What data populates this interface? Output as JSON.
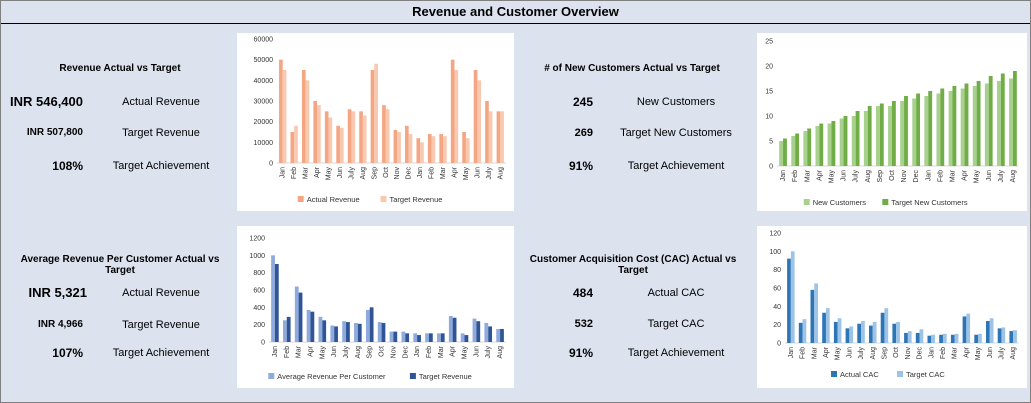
{
  "title": "Revenue and Customer Overview",
  "colors": {
    "actual_revenue": "#f4a582",
    "target_revenue": "#f8c8b0",
    "new_customers": "#a9d18e",
    "target_new_customers": "#70ad47",
    "arpc_actual": "#8faadc",
    "arpc_target": "#2f5597",
    "cac_actual": "#2e75b6",
    "cac_target": "#9dc3e6"
  },
  "revenue": {
    "heading": "Revenue Actual vs Target",
    "rows": [
      {
        "value": "INR 546,400",
        "label": "Actual Revenue"
      },
      {
        "value": "INR 507,800",
        "label": "Target Revenue"
      },
      {
        "value": "108%",
        "label": "Target Achievement"
      }
    ]
  },
  "customers": {
    "heading": "# of New Customers Actual vs Target",
    "rows": [
      {
        "value": "245",
        "label": "New Customers"
      },
      {
        "value": "269",
        "label": "Target New Customers"
      },
      {
        "value": "91%",
        "label": "Target Achievement"
      }
    ]
  },
  "arpc": {
    "heading": "Average Revenue Per Customer Actual vs Target",
    "rows": [
      {
        "value": "INR 5,321",
        "label": "Actual Revenue"
      },
      {
        "value": "INR 4,966",
        "label": "Target Revenue"
      },
      {
        "value": "107%",
        "label": "Target Achievement"
      }
    ]
  },
  "cac": {
    "heading": "Customer Acquisition Cost (CAC) Actual vs Target",
    "rows": [
      {
        "value": "484",
        "label": "Actual CAC"
      },
      {
        "value": "532",
        "label": "Target CAC"
      },
      {
        "value": "91%",
        "label": "Target Achievement"
      }
    ]
  },
  "chart_data": [
    {
      "type": "bar",
      "categories": [
        "Jan",
        "Feb",
        "Mar",
        "Apr",
        "May",
        "Jun",
        "July",
        "Aug",
        "Sep",
        "Oct",
        "Nov",
        "Dec",
        "Jan",
        "Feb",
        "Mar",
        "Apr",
        "May",
        "Jun",
        "July",
        "Aug"
      ],
      "series": [
        {
          "name": "Actual Revenue",
          "values": [
            50000,
            15000,
            45000,
            30000,
            25000,
            18000,
            26000,
            25000,
            45000,
            28000,
            16000,
            18000,
            12000,
            14000,
            14000,
            50000,
            15000,
            45000,
            30000,
            25000
          ]
        },
        {
          "name": "Target Revenue",
          "values": [
            45000,
            18000,
            40000,
            28000,
            22000,
            17000,
            25000,
            23000,
            48000,
            26000,
            15000,
            14000,
            10000,
            13000,
            13000,
            45000,
            12000,
            40000,
            25000,
            25000
          ]
        }
      ],
      "ylim": [
        0,
        60000
      ],
      "yticks": [
        "0",
        "10000",
        "20000",
        "30000",
        "40000",
        "50000",
        "60000"
      ],
      "legend": "bottom"
    },
    {
      "type": "bar",
      "categories": [
        "Jan",
        "Feb",
        "Mar",
        "Apr",
        "May",
        "Jun",
        "July",
        "Aug",
        "Sep",
        "Oct",
        "Nov",
        "Dec",
        "Jan",
        "Feb",
        "Mar",
        "Apr",
        "May",
        "Jun",
        "July",
        "Aug"
      ],
      "series": [
        {
          "name": "New Customers",
          "values": [
            5,
            6,
            7,
            8,
            8.5,
            9.5,
            10,
            11,
            12,
            12,
            13,
            13.5,
            14,
            14.5,
            15,
            15.5,
            16,
            16.5,
            17,
            17.5
          ]
        },
        {
          "name": "Target New Customers",
          "values": [
            5.5,
            6.5,
            7.5,
            8.5,
            9,
            10,
            11,
            12,
            12.5,
            13,
            14,
            14.5,
            15,
            15.5,
            16,
            16.5,
            17,
            18,
            18.5,
            19
          ]
        }
      ],
      "ylim": [
        0,
        25
      ],
      "yticks": [
        "0",
        "5",
        "10",
        "15",
        "20",
        "25"
      ],
      "legend": "bottom"
    },
    {
      "type": "bar",
      "categories": [
        "Jan",
        "Feb",
        "Mar",
        "Apr",
        "May",
        "Jun",
        "July",
        "Aug",
        "Sep",
        "Oct",
        "Nov",
        "Dec",
        "Jan",
        "Feb",
        "Mar",
        "Apr",
        "May",
        "Jun",
        "July",
        "Aug"
      ],
      "series": [
        {
          "name": "Average Revenue Per Customer",
          "values": [
            1000,
            250,
            640,
            370,
            290,
            190,
            240,
            220,
            370,
            230,
            120,
            120,
            100,
            100,
            100,
            300,
            100,
            270,
            220,
            150
          ]
        },
        {
          "name": "Target Revenue",
          "values": [
            900,
            290,
            570,
            350,
            250,
            180,
            230,
            210,
            400,
            220,
            120,
            100,
            80,
            100,
            100,
            280,
            80,
            240,
            180,
            150
          ]
        }
      ],
      "ylim": [
        0,
        1200
      ],
      "yticks": [
        "0",
        "200",
        "400",
        "600",
        "800",
        "1000",
        "1200"
      ],
      "legend": "bottom"
    },
    {
      "type": "bar",
      "categories": [
        "Jan",
        "Feb",
        "Mar",
        "Apr",
        "May",
        "Jun",
        "July",
        "Aug",
        "Sep",
        "Oct",
        "Nov",
        "Dec",
        "Jan",
        "Feb",
        "Mar",
        "Apr",
        "May",
        "Jun",
        "July",
        "Aug"
      ],
      "series": [
        {
          "name": "Actual CAC",
          "values": [
            92,
            22,
            58,
            33,
            23,
            16,
            21,
            19,
            33,
            21,
            11,
            11,
            8,
            9,
            9,
            29,
            9,
            24,
            16,
            13
          ]
        },
        {
          "name": "Target CAC",
          "values": [
            100,
            26,
            65,
            38,
            27,
            18,
            24,
            23,
            38,
            23,
            13,
            15,
            9,
            10,
            10,
            32,
            10,
            27,
            17,
            14
          ]
        }
      ],
      "ylim": [
        0,
        120
      ],
      "yticks": [
        "0",
        "20",
        "40",
        "60",
        "80",
        "100",
        "120"
      ],
      "legend": "bottom"
    }
  ]
}
